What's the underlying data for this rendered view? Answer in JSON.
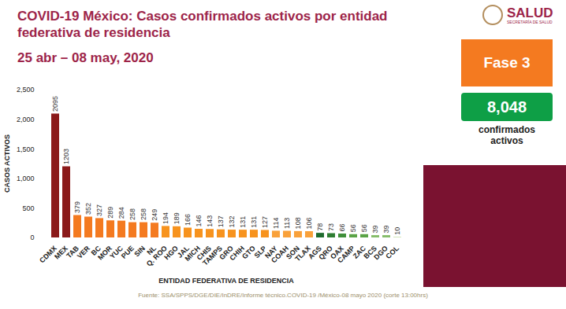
{
  "header": {
    "logo": "SALUD",
    "logo_subtitle": "SECRETARÍA DE SALUD"
  },
  "panel": {
    "phase": "Fase 3",
    "total": "8,048",
    "total_label": "confirmados activos"
  },
  "caption": "Fuente: SSA/SPPS/DGE/DIE/InDRE/Informe técnico.COVID-19 /México-08 mayo 2020 (corte 13:00hrs)",
  "chart_data": {
    "type": "bar",
    "title": "COVID-19 México: Casos confirmados activos por entidad federativa de residencia",
    "subtitle": "25 abr – 08 may, 2020",
    "x_label": "ENTIDAD FEDERATIVA DE RESIDENCIA",
    "y_label": "CASOS ACTIVOS",
    "categories": [
      "CDMX",
      "MEX",
      "TAB",
      "VER",
      "BC",
      "MOR",
      "YUC",
      "PUE",
      "SIN",
      "NL",
      "Q. ROO",
      "HGO",
      "JAL",
      "MICH",
      "CHIS",
      "TAMPS",
      "GRO",
      "CHIH",
      "GTO",
      "SLP",
      "NAY",
      "COAH",
      "SON",
      "TLAX",
      "AGS",
      "QRO",
      "OAX",
      "CAMP",
      "ZAC",
      "BCS",
      "DGO",
      "COL"
    ],
    "values": [
      2095,
      1203,
      379,
      352,
      327,
      289,
      284,
      258,
      258,
      249,
      194,
      189,
      166,
      146,
      143,
      137,
      132,
      131,
      131,
      127,
      114,
      113,
      108,
      106,
      78,
      73,
      66,
      56,
      56,
      39,
      39,
      10
    ],
    "colors": [
      "#8b1a1a",
      "#8b1a1a",
      "#f47a20",
      "#f47a20",
      "#f47a20",
      "#f47a20",
      "#f47a20",
      "#f47a20",
      "#f47a20",
      "#f47a20",
      "#f7931e",
      "#f7931e",
      "#f7931e",
      "#f7931e",
      "#f7931e",
      "#f7931e",
      "#f7931e",
      "#f7931e",
      "#f7931e",
      "#f7931e",
      "#f9a13a",
      "#f9a13a",
      "#f9a13a",
      "#f9a13a",
      "#1f6b2e",
      "#2e7d32",
      "#3f8f3a",
      "#5aa346",
      "#5aa346",
      "#86bd6a",
      "#86bd6a",
      "#c5e0a5"
    ],
    "ylim": [
      0,
      2500
    ],
    "yticks": [
      0,
      500,
      1000,
      1500,
      2000,
      2500
    ],
    "grid": false,
    "data_labels": true
  }
}
